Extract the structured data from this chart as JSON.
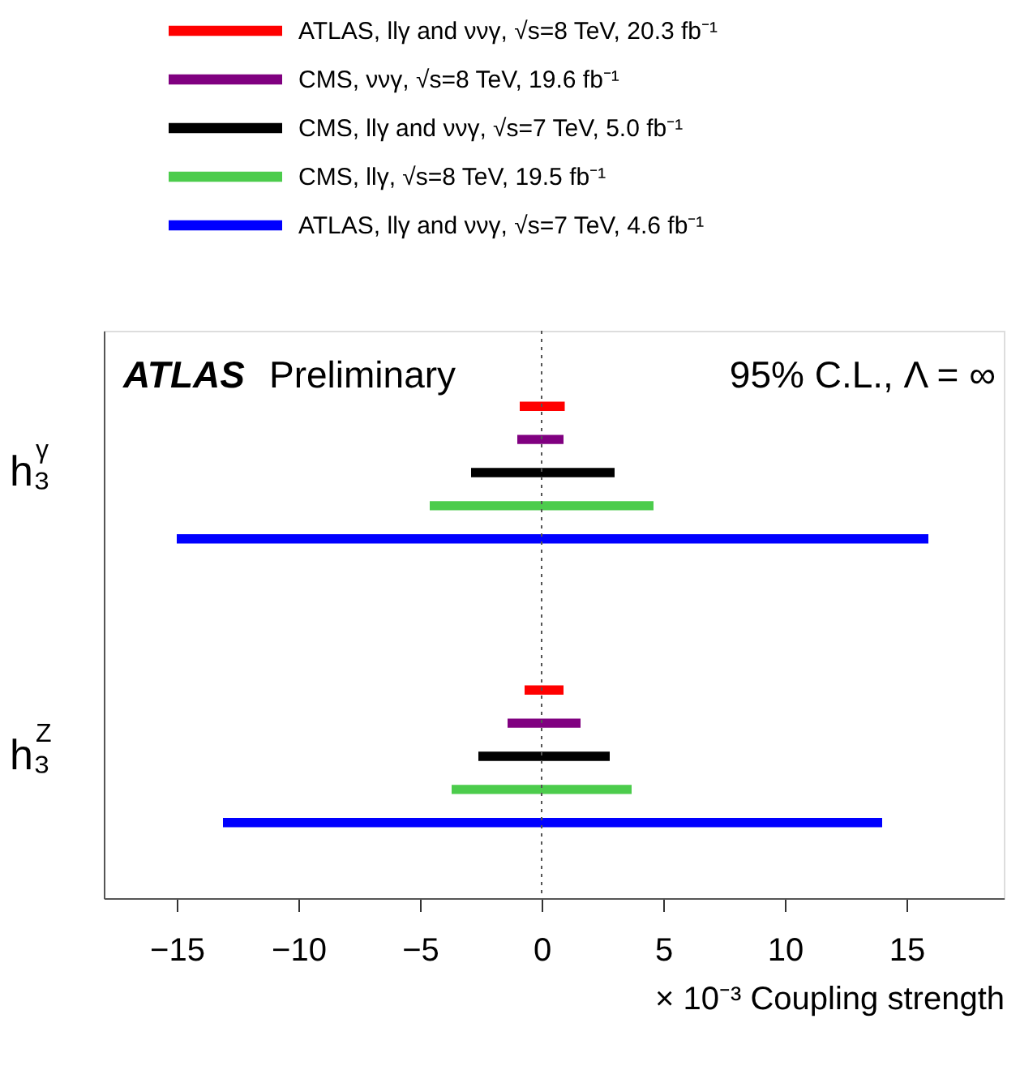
{
  "chart_data": {
    "type": "bar",
    "orientation": "horizontal",
    "categories": [
      "h₃$^{γ}$",
      "h₃$^{Z}$"
    ],
    "series": [
      {
        "name": "ATLAS, llγ and ννγ, √s=8 TeV, 20.3 fb⁻¹",
        "color": "#ff0000",
        "base": [
          -0.9,
          -0.7
        ],
        "values": [
          1.85,
          1.6
        ]
      },
      {
        "name": "CMS, ννγ, √s=8 TeV, 19.6 fb⁻¹",
        "color": "#800080",
        "base": [
          -1.0,
          -1.4
        ],
        "values": [
          1.9,
          3.0
        ]
      },
      {
        "name": "CMS, llγ and ννγ, √s=7 TeV, 5.0 fb⁻¹",
        "color": "#000000",
        "base": [
          -2.9,
          -2.6
        ],
        "values": [
          5.9,
          5.4
        ]
      },
      {
        "name": "CMS, llγ, √s=8 TeV, 19.5 fb⁻¹",
        "color": "#4ccc4c",
        "base": [
          -4.6,
          -3.7
        ],
        "values": [
          9.2,
          7.4
        ]
      },
      {
        "name": "ATLAS, llγ and ννγ, √s=7 TeV, 4.6 fb⁻¹",
        "color": "#0000ff",
        "base": [
          -15.0,
          -13.1
        ],
        "values": [
          30.9,
          27.1
        ]
      }
    ],
    "xlim": [
      -18,
      19
    ],
    "xticks": [
      -15,
      -10,
      -5,
      0,
      5,
      10,
      15
    ],
    "xlabel": "× 10⁻³ Coupling strength",
    "ref_lines": [
      {
        "axis": "x",
        "value": 0,
        "label": null,
        "color": "#555555",
        "line_style": "dotted"
      }
    ],
    "annotations": [
      "ATLAS",
      "Preliminary",
      "95% C.L., Λ = ∞"
    ],
    "legend": "top",
    "grid": false
  }
}
